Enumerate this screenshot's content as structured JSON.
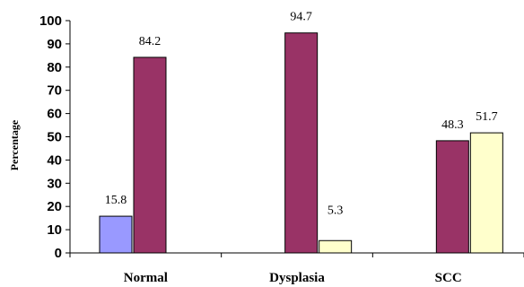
{
  "chart_data": {
    "type": "bar",
    "categories": [
      "Normal",
      "Dysplasia",
      "SCC"
    ],
    "series": [
      {
        "values": [
          15.8,
          0,
          0
        ],
        "labels": [
          "15.8",
          "",
          ""
        ],
        "color": "#9999ff"
      },
      {
        "values": [
          84.2,
          94.7,
          48.3
        ],
        "labels": [
          "84.2",
          "94.7",
          "48.3"
        ],
        "color": "#993366"
      },
      {
        "values": [
          0,
          5.3,
          51.7
        ],
        "labels": [
          "",
          "5.3",
          "51.7"
        ],
        "color": "#ffffcc"
      }
    ],
    "xlabel": "",
    "ylabel": "Percentage",
    "ylim": [
      0,
      100
    ],
    "yticks": [
      "0",
      "10",
      "20",
      "30",
      "40",
      "50",
      "60",
      "70",
      "80",
      "90",
      "100"
    ],
    "grid": false,
    "legend": "none"
  }
}
